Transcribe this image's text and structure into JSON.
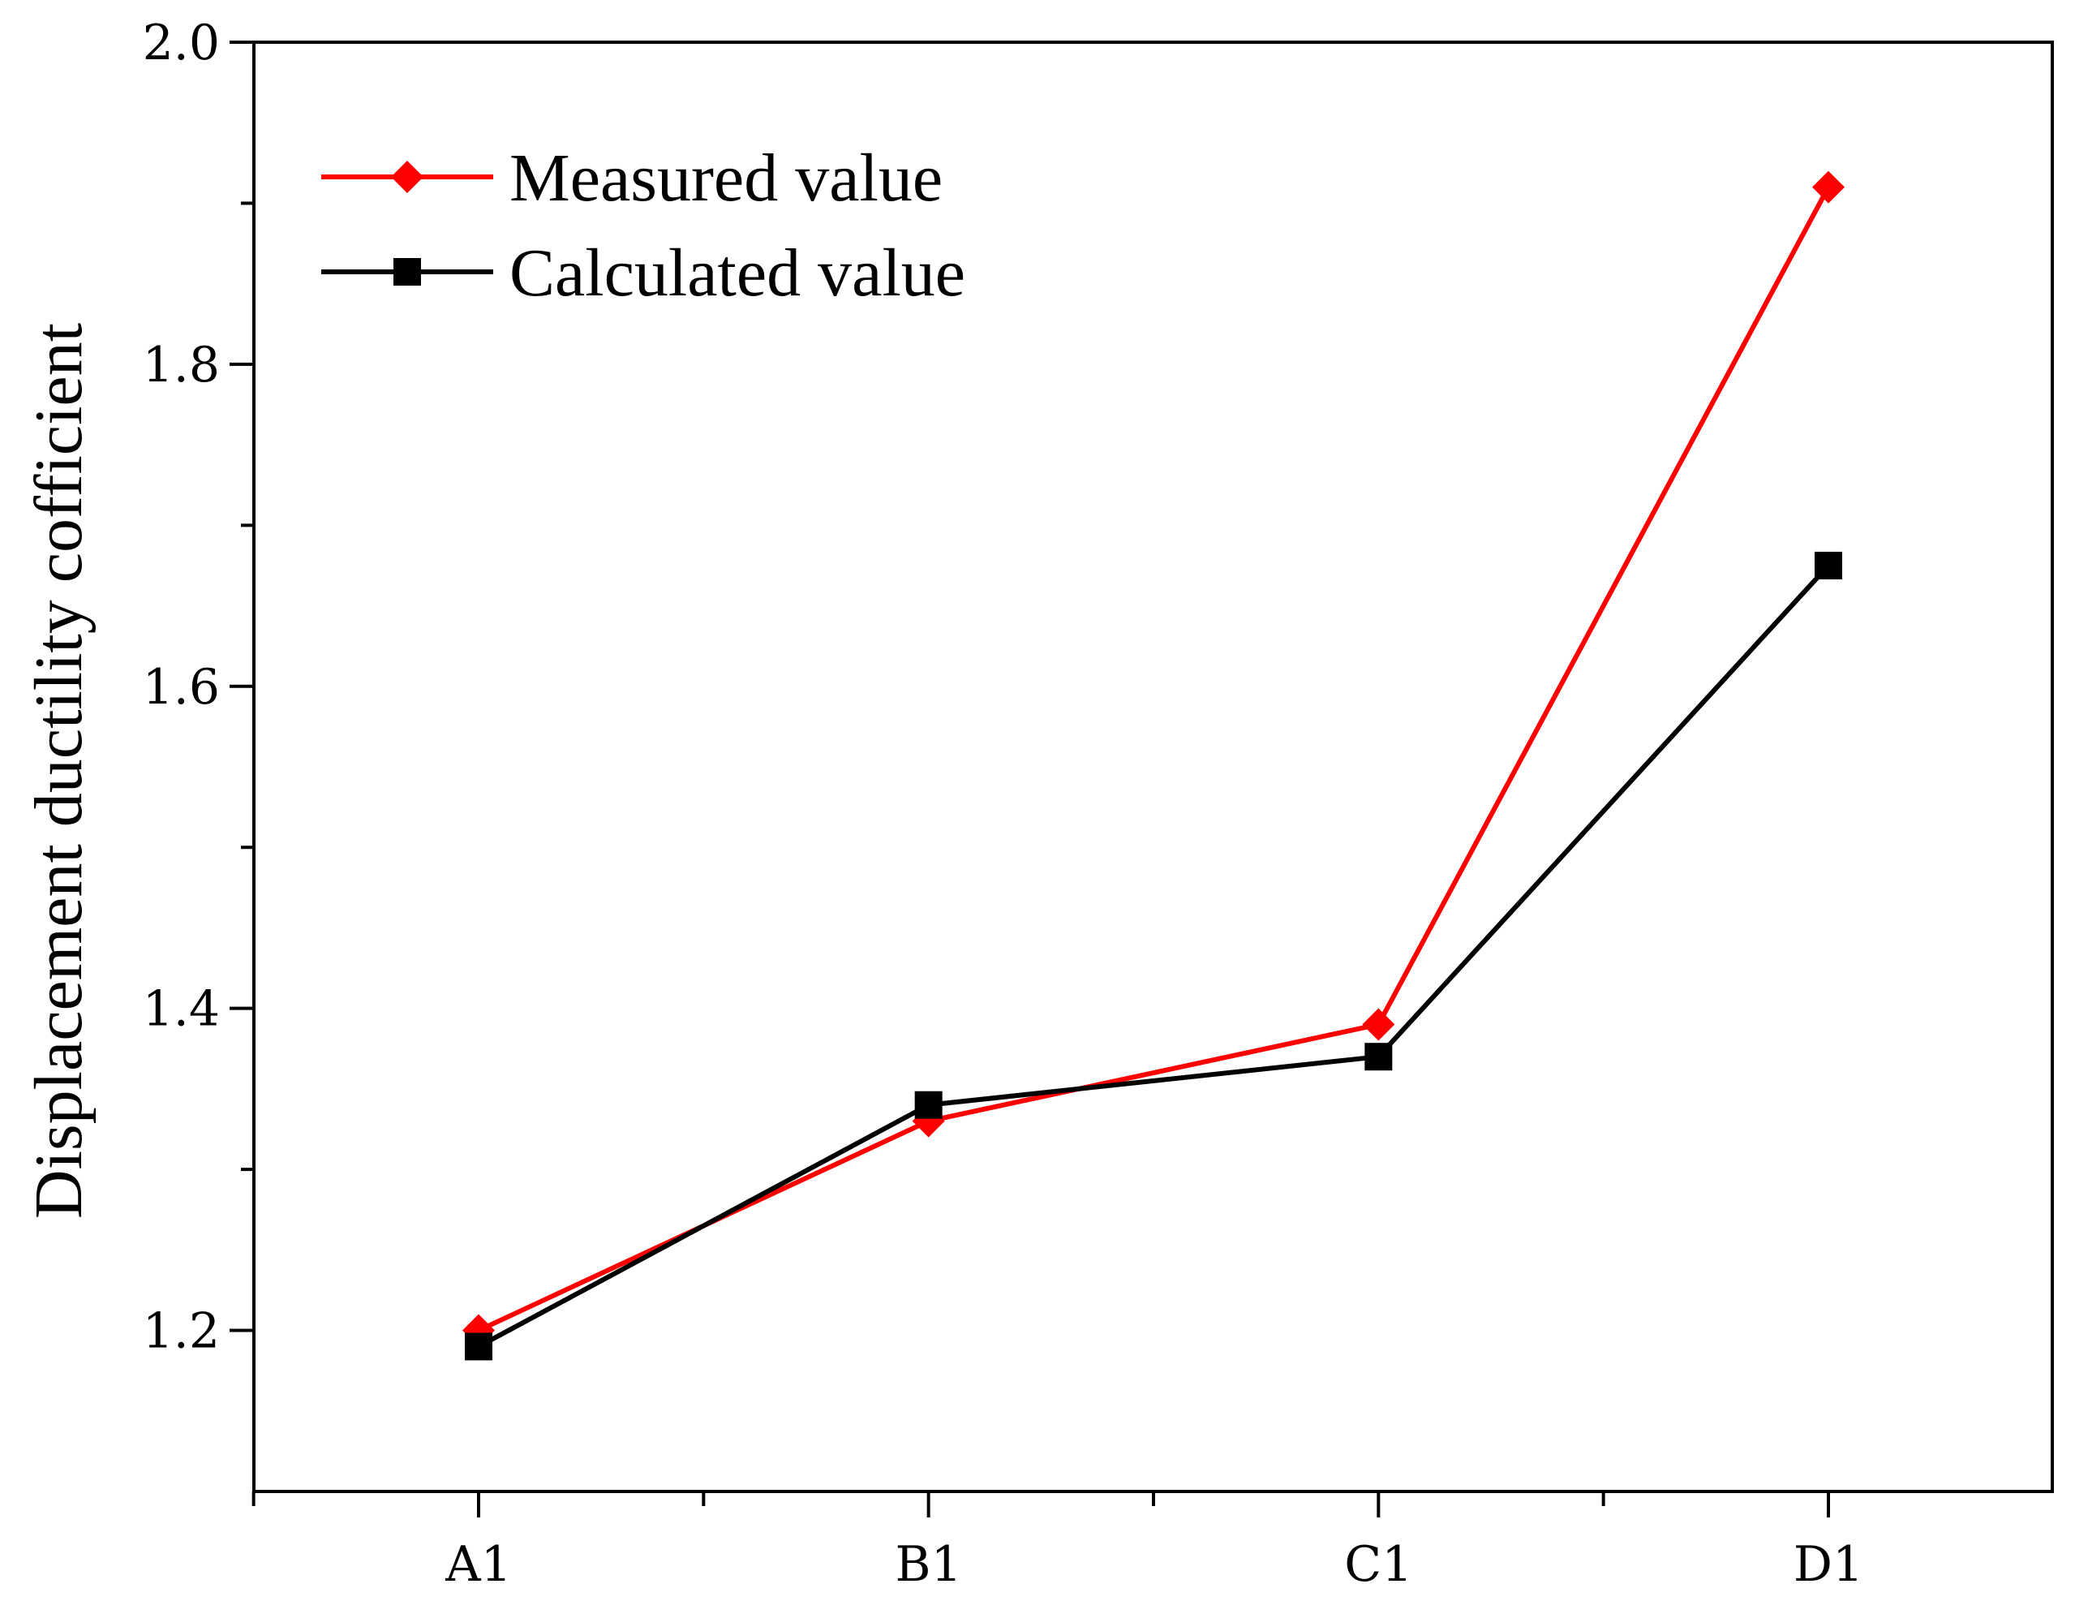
{
  "chart_data": {
    "type": "line",
    "title": "",
    "xlabel": "",
    "ylabel": "Displacement ductility cofficient",
    "categories": [
      "A1",
      "B1",
      "C1",
      "D1"
    ],
    "ylim": [
      1.1,
      2.0
    ],
    "yticks_major": [
      1.2,
      1.4,
      1.6,
      1.8,
      2.0
    ],
    "ytick_labels": [
      "1.2",
      "1.4",
      "1.6",
      "1.8",
      "2.0"
    ],
    "yticks_minor": [
      1.3,
      1.5,
      1.7,
      1.9
    ],
    "grid": false,
    "legend_position": "top-left",
    "series": [
      {
        "name": "Measured value",
        "values": [
          1.2,
          1.33,
          1.39,
          1.91
        ],
        "color": "#ff0000",
        "marker": "diamond"
      },
      {
        "name": "Calculated value",
        "values": [
          1.19,
          1.34,
          1.37,
          1.675
        ],
        "color": "#000000",
        "marker": "square"
      }
    ]
  }
}
